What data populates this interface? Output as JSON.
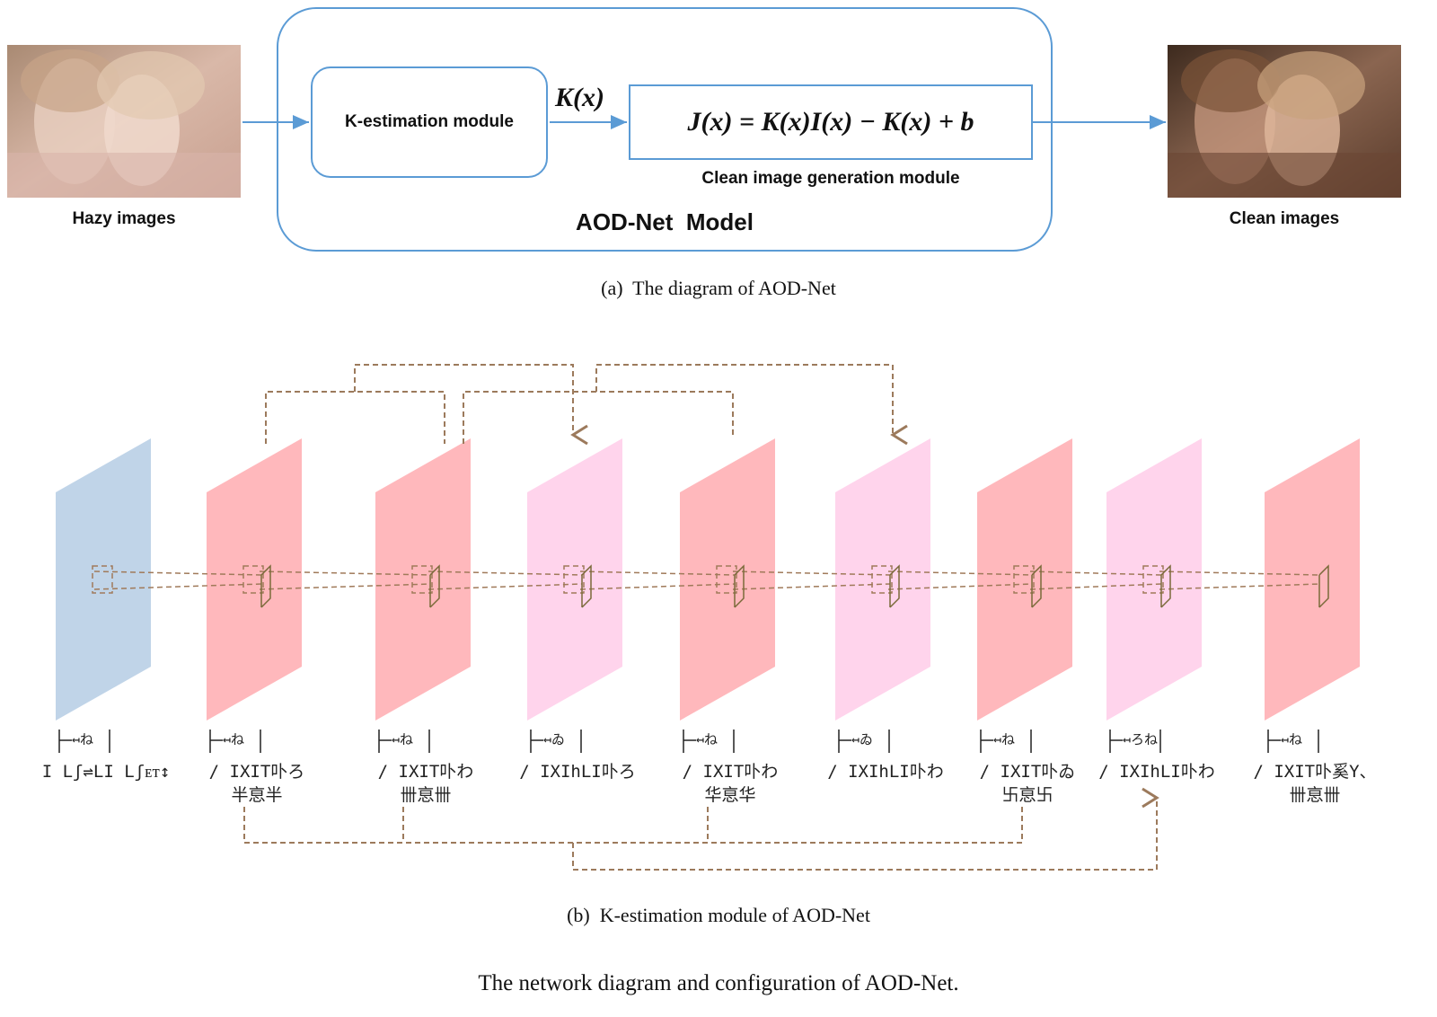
{
  "part_a": {
    "input_label": "Hazy images",
    "output_label": "Clean images",
    "model_title": "AOD-Net  Model",
    "k_module_label": "K-estimation module",
    "k_arrow_label": "K(x)",
    "formula": "J(x) = K(x)I(x) − K(x) + b",
    "clean_module_label": "Clean image generation module",
    "caption": "(a)  The diagram of AOD-Net"
  },
  "part_b": {
    "caption": "(b)  K-estimation module of AOD-Net",
    "layers": [
      {
        "kind": "input",
        "color": "#c0d4e8",
        "kernel": "↤ね",
        "name_line1": "I Lʃ⇌LI Lʃᴇᴛ↕",
        "name_line2": ""
      },
      {
        "kind": "conv",
        "color": "#ffb8bc",
        "kernel": "↤ね",
        "name_line1": "/ IXIT卟ろ",
        "name_line2": "半恴半"
      },
      {
        "kind": "conv",
        "color": "#ffb8bc",
        "kernel": "↤ね",
        "name_line1": "/ IXIT卟わ",
        "name_line2": "卌恴卌"
      },
      {
        "kind": "concat",
        "color": "#ffd4ec",
        "kernel": "↤ゐ",
        "name_line1": "/ IXIhLI卟ろ",
        "name_line2": ""
      },
      {
        "kind": "conv",
        "color": "#ffb8bc",
        "kernel": "↤ね",
        "name_line1": "/ IXIT卟わ",
        "name_line2": "华恴华"
      },
      {
        "kind": "concat",
        "color": "#ffd4ec",
        "kernel": "↤ゐ",
        "name_line1": "/ IXIhLI卟わ",
        "name_line2": ""
      },
      {
        "kind": "conv",
        "color": "#ffb8bc",
        "kernel": "↤ね",
        "name_line1": "/ IXIT卟ゐ",
        "name_line2": "卐恴卐"
      },
      {
        "kind": "concat",
        "color": "#ffd4ec",
        "kernel": "↤ろね",
        "name_line1": "/ IXIhLI卟わ",
        "name_line2": ""
      },
      {
        "kind": "conv",
        "color": "#ffb8bc",
        "kernel": "↤ね",
        "name_line1": "/ IXIT卟奚Y、",
        "name_line2": "卌恴卌"
      }
    ]
  },
  "figure_caption": "The network diagram and configuration of AOD-Net.",
  "colors": {
    "accent_blue": "#5b9bd5",
    "dashed_brown": "#9c7a5c",
    "input_plane": "#c0d4e8",
    "conv_plane": "#ffb8bc",
    "concat_plane": "#ffd4ec"
  }
}
